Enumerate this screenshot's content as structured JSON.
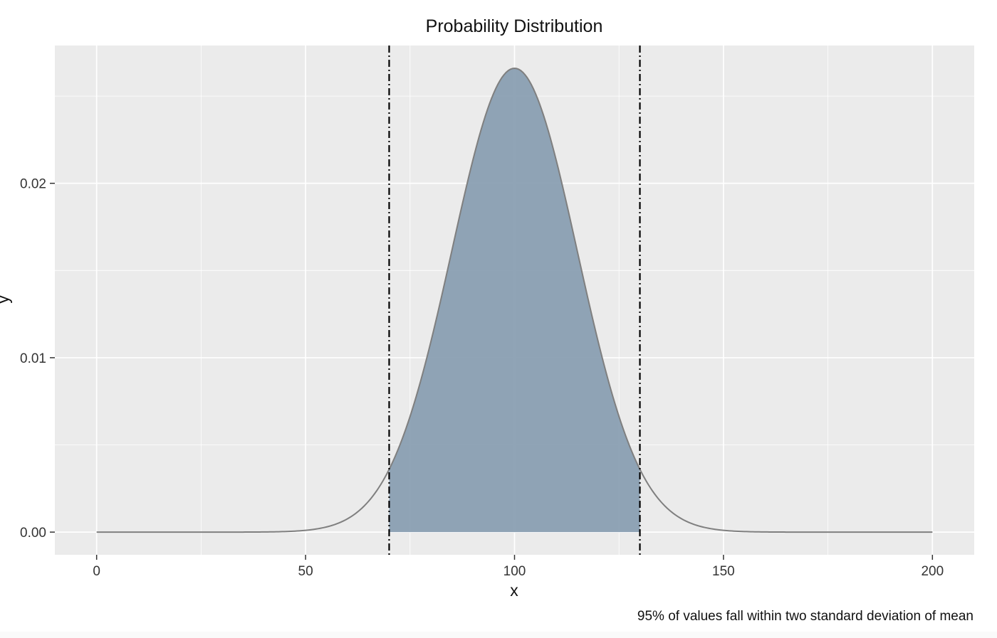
{
  "chart_data": {
    "type": "area",
    "title": "Probability Distribution",
    "xlabel": "x",
    "ylabel": "y",
    "caption": "95% of values fall within two standard deviation of mean",
    "distribution": {
      "name": "normal",
      "mean": 100,
      "sd": 15
    },
    "x_range": [
      0,
      200
    ],
    "xlim": [
      -10,
      210
    ],
    "ylim": [
      -0.0013,
      0.0279
    ],
    "x_ticks": [
      0,
      50,
      100,
      150,
      200
    ],
    "x_tick_labels": [
      "0",
      "50",
      "100",
      "150",
      "200"
    ],
    "y_ticks": [
      0,
      0.01,
      0.02
    ],
    "y_tick_labels": [
      "0.00",
      "0.01",
      "0.02"
    ],
    "x_minor_ticks": [
      25,
      75,
      125,
      175
    ],
    "y_minor_ticks": [
      0.005,
      0.015,
      0.025
    ],
    "shaded_region": {
      "from": 70,
      "to": 130
    },
    "reference_lines": [
      {
        "x": 70,
        "style": "dotdash"
      },
      {
        "x": 130,
        "style": "dotdash"
      }
    ],
    "grid": true,
    "colors": {
      "panel_background": "#ebebeb",
      "grid": "#ffffff",
      "curve": "#7f7f7f",
      "fill": "#8a9fb2",
      "reference_line": "#000000"
    }
  }
}
